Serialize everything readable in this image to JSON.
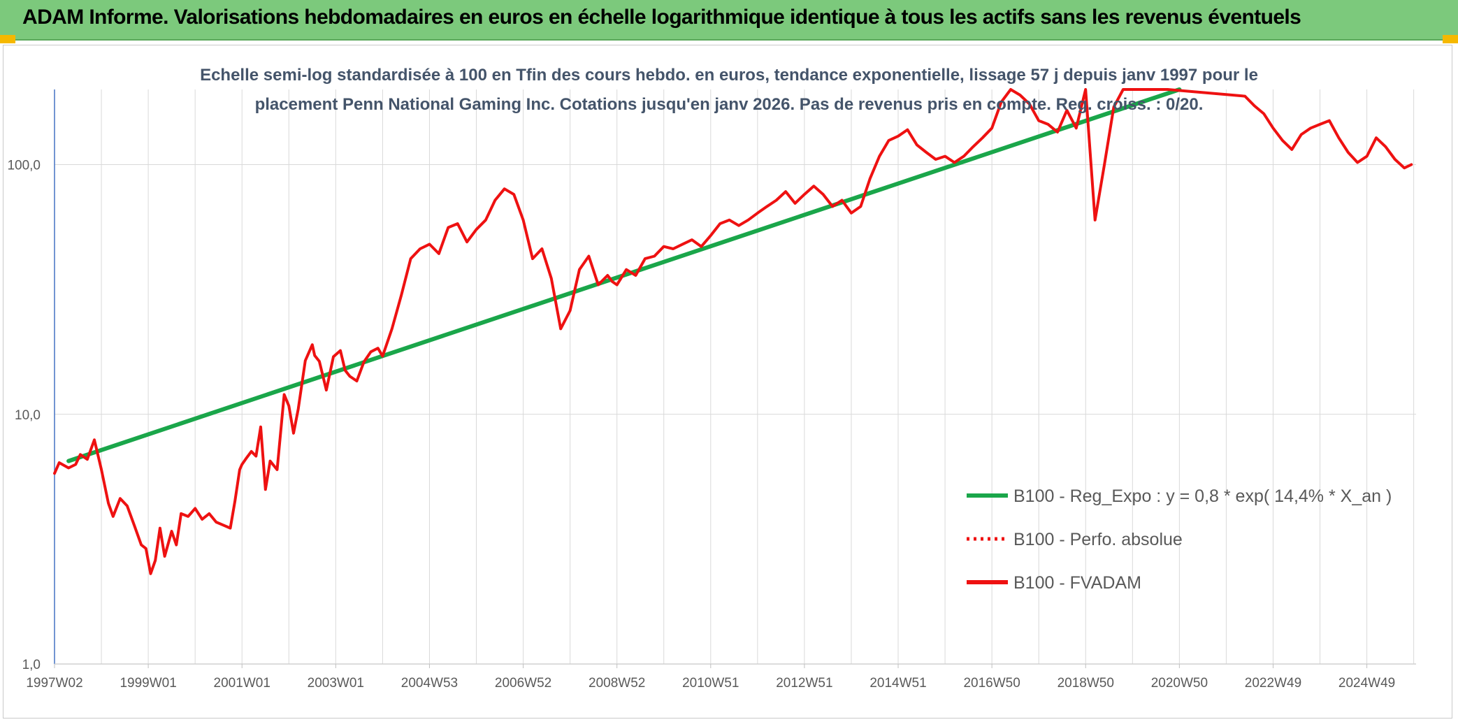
{
  "header": {
    "title": "ADAM Informe. Valorisations hebdomadaires en euros en échelle logarithmique identique à tous les actifs sans les revenus éventuels"
  },
  "colors": {
    "header_bg": "#7cc97c",
    "corner_accent": "#f5b800",
    "trend": "#1aa64a",
    "fvadam": "#ee1111",
    "grid": "#d9d9d9",
    "axis": "#4472c4"
  },
  "chart_data": {
    "type": "line",
    "subtitle_line1": "Echelle semi-log standardisée à 100 en Tfin des cours hebdo. en euros, tendance exponentielle, lissage 57 j depuis janv 1997 pour le",
    "subtitle_line2": "placement Penn National Gaming Inc. Cotations jusqu'en janv 2026. Pas de revenus pris en compte. Reg. croiss. : 0/20.",
    "y_scale": "log",
    "ylim": [
      1,
      200
    ],
    "y_ticks": [
      {
        "value": 1,
        "label": "1,0"
      },
      {
        "value": 10,
        "label": "10,0"
      },
      {
        "value": 100,
        "label": "100,0"
      }
    ],
    "xlim": [
      1997.0,
      2026.05
    ],
    "x_ticks": [
      {
        "value": 1997.0,
        "label": "1997W02"
      },
      {
        "value": 1999.0,
        "label": "1999W01"
      },
      {
        "value": 2001.0,
        "label": "2001W01"
      },
      {
        "value": 2003.0,
        "label": "2003W01"
      },
      {
        "value": 2005.0,
        "label": "2004W53"
      },
      {
        "value": 2007.0,
        "label": "2006W52"
      },
      {
        "value": 2009.0,
        "label": "2008W52"
      },
      {
        "value": 2011.0,
        "label": "2010W51"
      },
      {
        "value": 2013.0,
        "label": "2012W51"
      },
      {
        "value": 2015.0,
        "label": "2014W51"
      },
      {
        "value": 2017.0,
        "label": "2016W50"
      },
      {
        "value": 2019.0,
        "label": "2018W50"
      },
      {
        "value": 2021.0,
        "label": "2020W50"
      },
      {
        "value": 2023.0,
        "label": "2022W49"
      },
      {
        "value": 2025.0,
        "label": "2024W49"
      }
    ],
    "grid": true,
    "legend_position": "right",
    "series": [
      {
        "name": "B100 - Reg_Expo : y = 0,8 * exp( 14,4% *  X_an )",
        "style": "solid",
        "color": "#1aa64a",
        "x": [
          1997.3,
          2021.0
        ],
        "y": [
          6.5,
          200
        ]
      },
      {
        "name": "B100 - Perfo. absolue",
        "style": "dotted",
        "color": "#ee1111",
        "x": [],
        "y": []
      },
      {
        "name": "B100 - FVADAM",
        "style": "solid",
        "color": "#ee1111",
        "x": [
          1997.0,
          1997.1,
          1997.3,
          1997.45,
          1997.55,
          1997.7,
          1997.85,
          1998.0,
          1998.15,
          1998.25,
          1998.4,
          1998.55,
          1998.7,
          1998.85,
          1998.95,
          1999.05,
          1999.15,
          1999.25,
          1999.35,
          1999.5,
          1999.6,
          1999.7,
          1999.85,
          2000.0,
          2000.15,
          2000.3,
          2000.45,
          2000.6,
          2000.75,
          2000.85,
          2000.95,
          2001.0,
          2001.1,
          2001.2,
          2001.3,
          2001.4,
          2001.5,
          2001.6,
          2001.75,
          2001.9,
          2002.0,
          2002.1,
          2002.2,
          2002.35,
          2002.5,
          2002.55,
          2002.65,
          2002.8,
          2002.95,
          2003.1,
          2003.2,
          2003.3,
          2003.45,
          2003.6,
          2003.75,
          2003.9,
          2004.0,
          2004.2,
          2004.4,
          2004.6,
          2004.8,
          2005.0,
          2005.2,
          2005.4,
          2005.6,
          2005.8,
          2006.0,
          2006.2,
          2006.4,
          2006.6,
          2006.8,
          2007.0,
          2007.2,
          2007.4,
          2007.6,
          2007.8,
          2008.0,
          2008.2,
          2008.4,
          2008.6,
          2008.8,
          2008.9,
          2009.0,
          2009.2,
          2009.4,
          2009.6,
          2009.8,
          2010.0,
          2010.2,
          2010.4,
          2010.6,
          2010.8,
          2011.0,
          2011.2,
          2011.4,
          2011.6,
          2011.8,
          2012.0,
          2012.2,
          2012.4,
          2012.6,
          2012.8,
          2013.0,
          2013.2,
          2013.4,
          2013.6,
          2013.8,
          2014.0,
          2014.2,
          2014.4,
          2014.6,
          2014.8,
          2015.0,
          2015.2,
          2015.4,
          2015.6,
          2015.8,
          2016.0,
          2016.2,
          2016.4,
          2016.6,
          2016.8,
          2017.0,
          2017.2,
          2017.4,
          2017.6,
          2017.8,
          2018.0,
          2018.2,
          2018.4,
          2018.6,
          2018.8,
          2019.0,
          2019.2,
          2019.4,
          2019.6,
          2019.8,
          2020.0,
          2020.1,
          2020.2,
          2020.3,
          2020.4,
          2020.5,
          2020.6,
          2020.75,
          2022.4,
          2022.6,
          2022.8,
          2023.0,
          2023.2,
          2023.4,
          2023.6,
          2023.8,
          2024.0,
          2024.2,
          2024.4,
          2024.6,
          2024.8,
          2025.0,
          2025.2,
          2025.4,
          2025.6,
          2025.8,
          2025.95
        ],
        "y": [
          5.8,
          6.4,
          6.1,
          6.3,
          6.9,
          6.6,
          7.9,
          6.0,
          4.4,
          3.9,
          4.6,
          4.3,
          3.6,
          3.0,
          2.9,
          2.3,
          2.6,
          3.5,
          2.7,
          3.4,
          3.0,
          4.0,
          3.9,
          4.2,
          3.8,
          4.0,
          3.7,
          3.6,
          3.5,
          4.5,
          6.0,
          6.3,
          6.7,
          7.1,
          6.8,
          8.9,
          5.0,
          6.5,
          6.0,
          12.0,
          10.8,
          8.4,
          10.5,
          16.4,
          19.0,
          17.2,
          16.3,
          12.5,
          17.0,
          18.0,
          15.0,
          14.2,
          13.6,
          16.2,
          17.8,
          18.4,
          17.1,
          22.0,
          30.0,
          42.0,
          46.0,
          48.0,
          44.0,
          56.0,
          58.0,
          49.0,
          55.0,
          60.0,
          72.0,
          80.0,
          76.0,
          60.0,
          42.0,
          46.0,
          35.0,
          22.0,
          26.0,
          38.0,
          43.0,
          33.0,
          36.0,
          34.0,
          33.0,
          38.0,
          36.0,
          42.0,
          43.0,
          47.0,
          46.0,
          48.0,
          50.0,
          47.0,
          52.0,
          58.0,
          60.0,
          57.0,
          60.0,
          64.0,
          68.0,
          72.0,
          78.0,
          70.0,
          76.0,
          82.0,
          76.0,
          68.0,
          72.0,
          64.0,
          68.0,
          88.0,
          108.0,
          125.0,
          130.0,
          138.0,
          120.0,
          112.0,
          105.0,
          108.0,
          102.0,
          108.0,
          118.0,
          128.0,
          140.0,
          178.0,
          200.0,
          190.0,
          175.0,
          150.0,
          145.0,
          135.0,
          165.0,
          140.0,
          200.0,
          60.0,
          100.0,
          170.0,
          200.0,
          200.0,
          200.0,
          200.0,
          200.0,
          200.0,
          200.0,
          200.0,
          200.0,
          188.0,
          172.0,
          160.0,
          140.0,
          125.0,
          115.0,
          132.0,
          140.0,
          145.0,
          150.0,
          128.0,
          112.0,
          102.0,
          108.0,
          128.0,
          118.0,
          105.0,
          97.0,
          100.0
        ]
      }
    ]
  }
}
